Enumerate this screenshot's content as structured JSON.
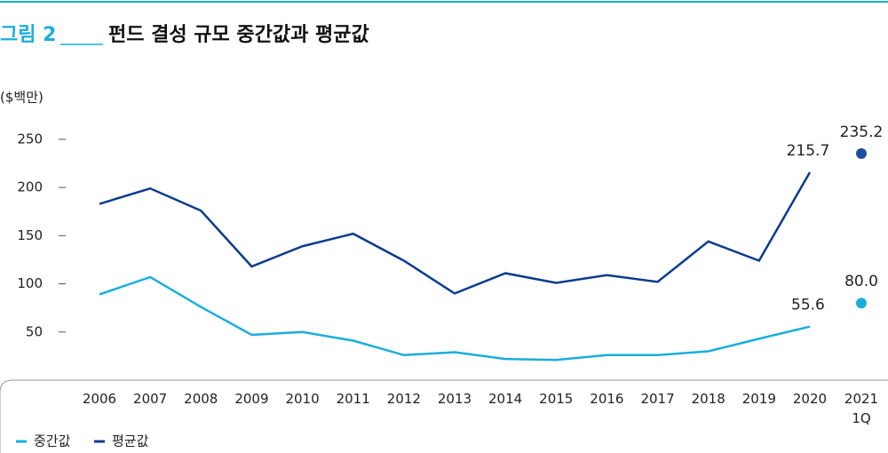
{
  "chart_data": {
    "type": "line",
    "figure_label": "그림 2",
    "title": "펀드 결성 규모 중간값과 평균값",
    "y_label": "($백만)",
    "categories": [
      "2006",
      "2007",
      "2008",
      "2009",
      "2010",
      "2011",
      "2012",
      "2013",
      "2014",
      "2015",
      "2016",
      "2017",
      "2018",
      "2019",
      "2020",
      "2021\n1Q"
    ],
    "series": [
      {
        "name": "중간값",
        "color": "#1aaedc",
        "values": [
          89,
          107,
          76,
          47,
          50,
          41,
          26,
          29,
          22,
          21,
          26,
          26,
          30,
          43,
          55.6,
          80.0
        ],
        "value_labels": [
          null,
          null,
          null,
          null,
          null,
          null,
          null,
          null,
          null,
          null,
          null,
          null,
          null,
          null,
          "55.6",
          "80.0"
        ]
      },
      {
        "name": "평균값",
        "color": "#0b3b8c",
        "dot_color": "#1a4fa0",
        "values": [
          183,
          199,
          176,
          118,
          139,
          152,
          124,
          90,
          111,
          101,
          109,
          102,
          144,
          124,
          215.7,
          235.2
        ],
        "value_labels": [
          null,
          null,
          null,
          null,
          null,
          null,
          null,
          null,
          null,
          null,
          null,
          null,
          null,
          null,
          "215.7",
          "235.2"
        ]
      }
    ],
    "last_point_detached": true,
    "ylim": [
      0,
      260
    ],
    "yticks": [
      50,
      100,
      150,
      200,
      250
    ]
  }
}
